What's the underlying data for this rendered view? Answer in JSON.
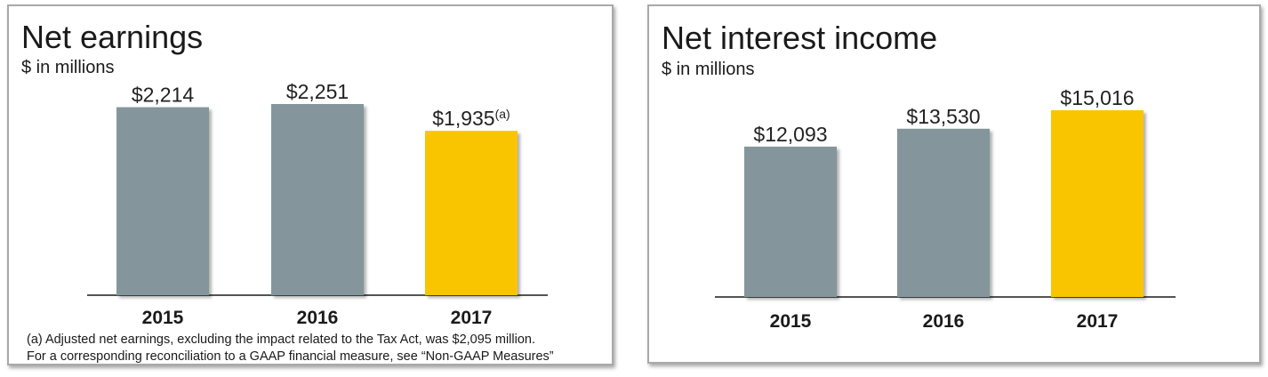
{
  "chart_data": [
    {
      "type": "bar",
      "title": "Net earnings",
      "subtitle": "$ in millions",
      "categories": [
        "2015",
        "2016",
        "2017"
      ],
      "values": [
        2214,
        2251,
        1935
      ],
      "value_labels": [
        "$2,214",
        "$2,251",
        "$1,935"
      ],
      "value_label_superscripts": [
        "",
        "",
        "(a)"
      ],
      "colors": [
        "#84969b",
        "#84969b",
        "#f9c500"
      ],
      "ylim": [
        0,
        2251
      ],
      "grid": false,
      "footnotes": [
        "(a) Adjusted net earnings, excluding the impact related to the Tax Act, was $2,095 million.",
        "For a corresponding reconciliation to a GAAP financial measure, see “Non-GAAP Measures”"
      ]
    },
    {
      "type": "bar",
      "title": "Net interest income",
      "subtitle": "$ in millions",
      "categories": [
        "2015",
        "2016",
        "2017"
      ],
      "values": [
        12093,
        13530,
        15016
      ],
      "value_labels": [
        "$12,093",
        "$13,530",
        "$15,016"
      ],
      "value_label_superscripts": [
        "",
        "",
        ""
      ],
      "colors": [
        "#84969b",
        "#84969b",
        "#f9c500"
      ],
      "ylim": [
        0,
        15016
      ],
      "grid": false,
      "footnotes": []
    }
  ]
}
